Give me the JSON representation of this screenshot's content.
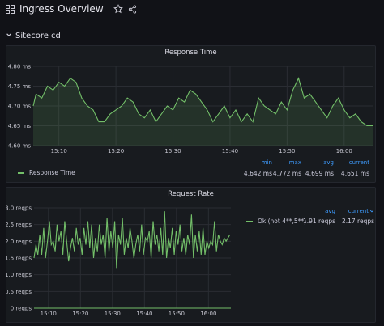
{
  "header": {
    "title": "Ingress Overview",
    "icons": [
      "dashboard-grid-icon",
      "star-icon",
      "share-icon"
    ]
  },
  "row": {
    "title": "Sitecore cd",
    "icon": "chevron-down-icon"
  },
  "colors": {
    "series": "#73bf69",
    "link": "#3e9cff",
    "panel": "#181b1f",
    "bg": "#111217"
  },
  "panels": [
    {
      "title": "Response Time",
      "legend": {
        "columns": [
          "min",
          "max",
          "avg",
          "current"
        ],
        "series": [
          {
            "name": "Response Time",
            "values": [
              "4.642 ms",
              "4.772 ms",
              "4.699 ms",
              "4.651 ms"
            ]
          }
        ]
      }
    },
    {
      "title": "Request Rate",
      "legend": {
        "columns": [
          "avg",
          "current"
        ],
        "current_caret": "chevron-down-icon",
        "series": [
          {
            "name": "Ok (not 4**,5**)",
            "values": [
              "1.91 reqps",
              "2.17 reqps"
            ]
          }
        ]
      }
    }
  ],
  "chart_data": [
    {
      "type": "area",
      "title": "Response Time",
      "x_ticks": [
        "15:10",
        "15:20",
        "15:30",
        "15:40",
        "15:50",
        "16:00"
      ],
      "y_ticks": [
        "4.60 ms",
        "4.65 ms",
        "4.70 ms",
        "4.75 ms",
        "4.80 ms"
      ],
      "ylim": [
        4.6,
        4.8
      ],
      "xlim_minutes": [
        5.5,
        65
      ],
      "grid": true,
      "legend": "bottom-left",
      "series": [
        {
          "name": "Response Time",
          "x_minutes": [
            5.5,
            6,
            7,
            8,
            9,
            10,
            11,
            12,
            13,
            14,
            15,
            16,
            17,
            18,
            19,
            20,
            21,
            22,
            23,
            24,
            25,
            26,
            27,
            28,
            29,
            30,
            31,
            32,
            33,
            34,
            35,
            36,
            37,
            38,
            39,
            40,
            41,
            42,
            43,
            44,
            45,
            46,
            47,
            48,
            49,
            50,
            51,
            52,
            53,
            54,
            55,
            56,
            57,
            58,
            59,
            60,
            61,
            62,
            63,
            64,
            65
          ],
          "values": [
            4.7,
            4.73,
            4.72,
            4.75,
            4.74,
            4.76,
            4.75,
            4.77,
            4.76,
            4.72,
            4.7,
            4.69,
            4.66,
            4.66,
            4.68,
            4.69,
            4.7,
            4.72,
            4.71,
            4.68,
            4.67,
            4.69,
            4.66,
            4.68,
            4.7,
            4.69,
            4.72,
            4.71,
            4.74,
            4.73,
            4.71,
            4.69,
            4.66,
            4.68,
            4.7,
            4.67,
            4.69,
            4.66,
            4.68,
            4.66,
            4.72,
            4.7,
            4.69,
            4.68,
            4.71,
            4.69,
            4.74,
            4.77,
            4.72,
            4.73,
            4.71,
            4.69,
            4.67,
            4.7,
            4.72,
            4.69,
            4.67,
            4.68,
            4.66,
            4.65,
            4.65
          ]
        }
      ]
    },
    {
      "type": "line",
      "title": "Request Rate",
      "x_ticks": [
        "15:10",
        "15:20",
        "15:30",
        "15:40",
        "15:50",
        "16:00"
      ],
      "y_ticks": [
        "0 reqps",
        "0.5 reqps",
        "1.0 reqps",
        "1.5 reqps",
        "2.0 reqps",
        "2.5 reqps",
        "3.0 reqps"
      ],
      "ylim": [
        0,
        3
      ],
      "xlim_minutes": [
        5.5,
        67
      ],
      "grid": true,
      "legend": "right",
      "series": [
        {
          "name": "Ok (not 4**,5**)",
          "x_minutes": [
            5.5,
            6.1,
            6.7,
            7.3,
            7.9,
            8.5,
            9.1,
            9.7,
            10.3,
            10.9,
            11.5,
            12.1,
            12.7,
            13.3,
            13.9,
            14.5,
            15.1,
            15.7,
            16.3,
            16.9,
            17.5,
            18.1,
            18.7,
            19.3,
            19.9,
            20.5,
            21.1,
            21.7,
            22.3,
            22.9,
            23.5,
            24.1,
            24.7,
            25.3,
            25.9,
            26.5,
            27.1,
            27.7,
            28.3,
            28.9,
            29.5,
            30.1,
            30.7,
            31.3,
            31.9,
            32.5,
            33.1,
            33.7,
            34.3,
            34.9,
            35.5,
            36.1,
            36.7,
            37.3,
            37.9,
            38.5,
            39.1,
            39.7,
            40.3,
            40.9,
            41.5,
            42.1,
            42.7,
            43.3,
            43.9,
            44.5,
            45.1,
            45.7,
            46.3,
            46.9,
            47.5,
            48.1,
            48.7,
            49.3,
            49.9,
            50.5,
            51.1,
            51.7,
            52.3,
            52.9,
            53.5,
            54.1,
            54.7,
            55.3,
            55.9,
            56.5,
            57.1,
            57.7,
            58.3,
            58.9,
            59.5,
            60.1,
            60.7,
            61.3,
            61.9,
            62.5,
            63.1,
            63.7,
            64.3,
            64.9,
            65.5,
            66.1,
            66.7
          ],
          "values": [
            1.5,
            1.9,
            1.6,
            2.2,
            1.6,
            2.4,
            1.5,
            2.0,
            2.6,
            1.9,
            2.0,
            1.7,
            2.5,
            2.0,
            2.3,
            1.6,
            2.6,
            2.0,
            1.4,
            1.8,
            2.1,
            1.7,
            2.4,
            1.9,
            2.1,
            1.6,
            2.4,
            1.9,
            2.6,
            1.8,
            2.5,
            1.5,
            2.1,
            1.7,
            2.5,
            1.9,
            2.2,
            1.5,
            2.7,
            1.7,
            2.3,
            1.8,
            2.6,
            1.2,
            2.2,
            1.9,
            2.7,
            1.6,
            2.1,
            1.8,
            2.4,
            2.0,
            1.5,
            1.9,
            2.2,
            1.7,
            2.5,
            1.6,
            2.1,
            2.0,
            2.3,
            1.5,
            2.6,
            1.9,
            2.2,
            1.7,
            2.4,
            1.6,
            2.9,
            1.5,
            2.1,
            1.8,
            2.4,
            1.6,
            2.3,
            1.9,
            2.5,
            1.7,
            2.1,
            1.6,
            2.2,
            1.9,
            2.8,
            1.5,
            2.2,
            1.7,
            2.3,
            1.6,
            2.4,
            1.6,
            2.0,
            1.8,
            2.0,
            1.9,
            2.6,
            1.7,
            2.2,
            2.0,
            1.9,
            2.1,
            2.0,
            2.1,
            2.2
          ]
        }
      ]
    }
  ]
}
